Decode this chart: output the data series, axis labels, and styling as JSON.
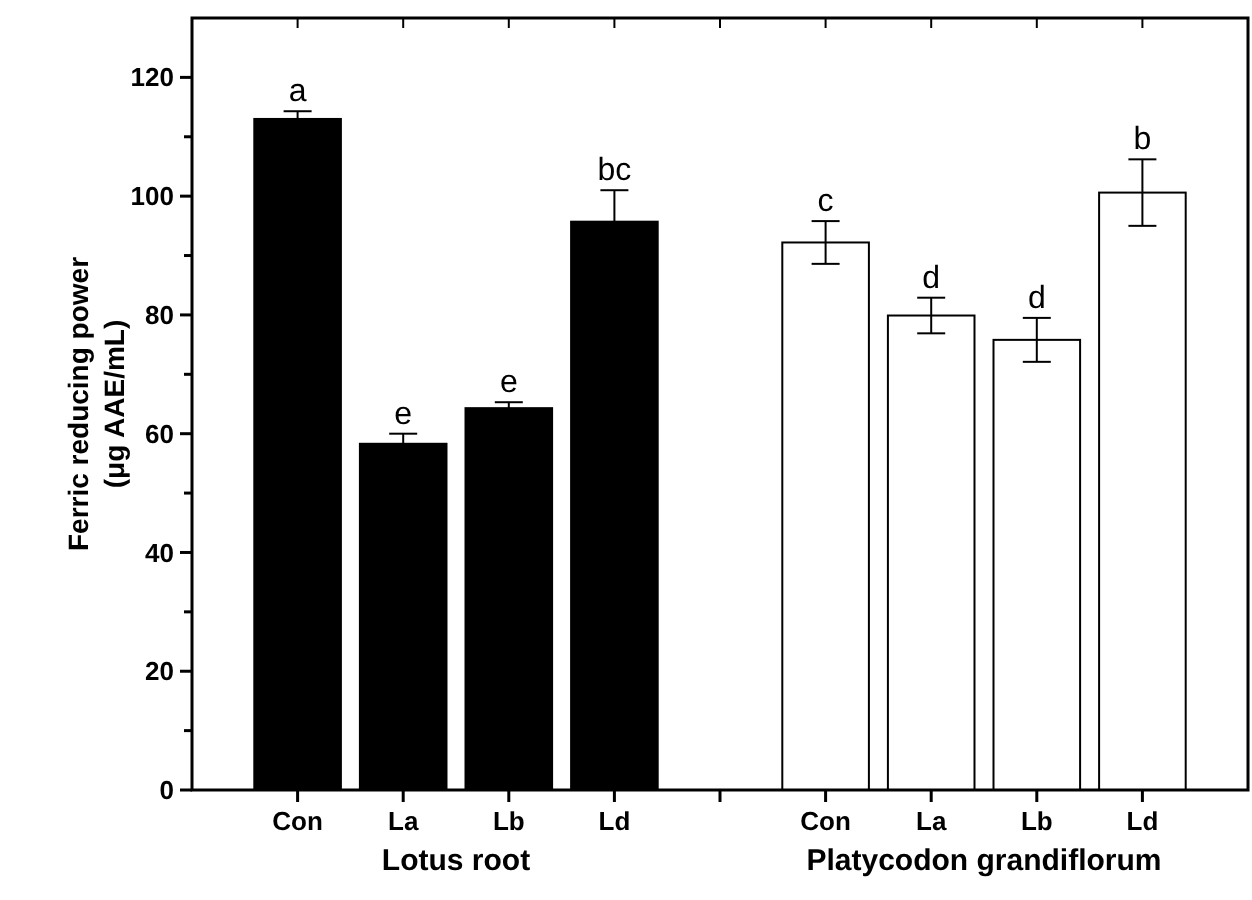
{
  "chart_data": {
    "type": "bar",
    "ylabel": "Ferric reducing power\n(μg AAE/mL)",
    "categories": [
      "Con",
      "La",
      "Lb",
      "Ld",
      null,
      "Con",
      "La",
      "Lb",
      "Ld"
    ],
    "series": [
      {
        "name": "Lotus root",
        "color": "#000000",
        "values": [
          113,
          58.3,
          64.3,
          95.7,
          null,
          null,
          null,
          null,
          null
        ],
        "errors": [
          1.3,
          1.7,
          1,
          5.3,
          null,
          null,
          null,
          null,
          null
        ],
        "value_labels": [
          "a",
          "e",
          "e",
          "bc",
          null,
          null,
          null,
          null,
          null
        ]
      },
      {
        "name": "Platycodon grandiflorum",
        "color": "#ffffff",
        "values": [
          null,
          null,
          null,
          null,
          null,
          92.2,
          79.9,
          75.8,
          100.6
        ],
        "errors": [
          null,
          null,
          null,
          null,
          null,
          3.6,
          3,
          3.7,
          5.6
        ],
        "value_labels": [
          null,
          null,
          null,
          null,
          null,
          "c",
          "d",
          "d",
          "b"
        ]
      }
    ],
    "ylim": [
      0,
      130
    ],
    "yticks": [
      0,
      {
        "value": 10,
        "label": null
      },
      20,
      {
        "value": 30,
        "label": null
      },
      40,
      {
        "value": 50,
        "label": null
      },
      60,
      {
        "value": 70,
        "label": null
      },
      80,
      {
        "value": 90,
        "label": null
      },
      100,
      {
        "value": 110,
        "label": null
      },
      120
    ],
    "grid": false
  }
}
